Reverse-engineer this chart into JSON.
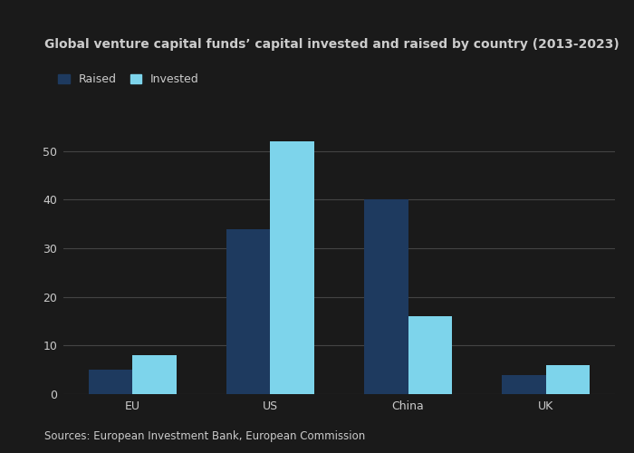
{
  "title": "Global venture capital funds’ capital invested and raised by country (2013-2023)",
  "categories": [
    "EU",
    "US",
    "China",
    "UK"
  ],
  "raised": [
    5,
    34,
    40,
    4
  ],
  "invested": [
    8,
    52,
    16,
    6
  ],
  "color_raised": "#1e3a5f",
  "color_invested": "#7dd4eb",
  "legend_labels": [
    "Raised",
    "Invested"
  ],
  "ylim": [
    0,
    55
  ],
  "yticks": [
    0,
    10,
    20,
    30,
    40,
    50
  ],
  "source": "Sources: European Investment Bank, European Commission",
  "bar_width": 0.32,
  "background_color": "#1a1a1a",
  "plot_bg_color": "#1a1a1a",
  "grid_color": "#444444",
  "title_fontsize": 10,
  "source_fontsize": 8.5,
  "tick_fontsize": 9,
  "legend_fontsize": 9,
  "text_color": "#cccccc",
  "title_color": "#cccccc"
}
